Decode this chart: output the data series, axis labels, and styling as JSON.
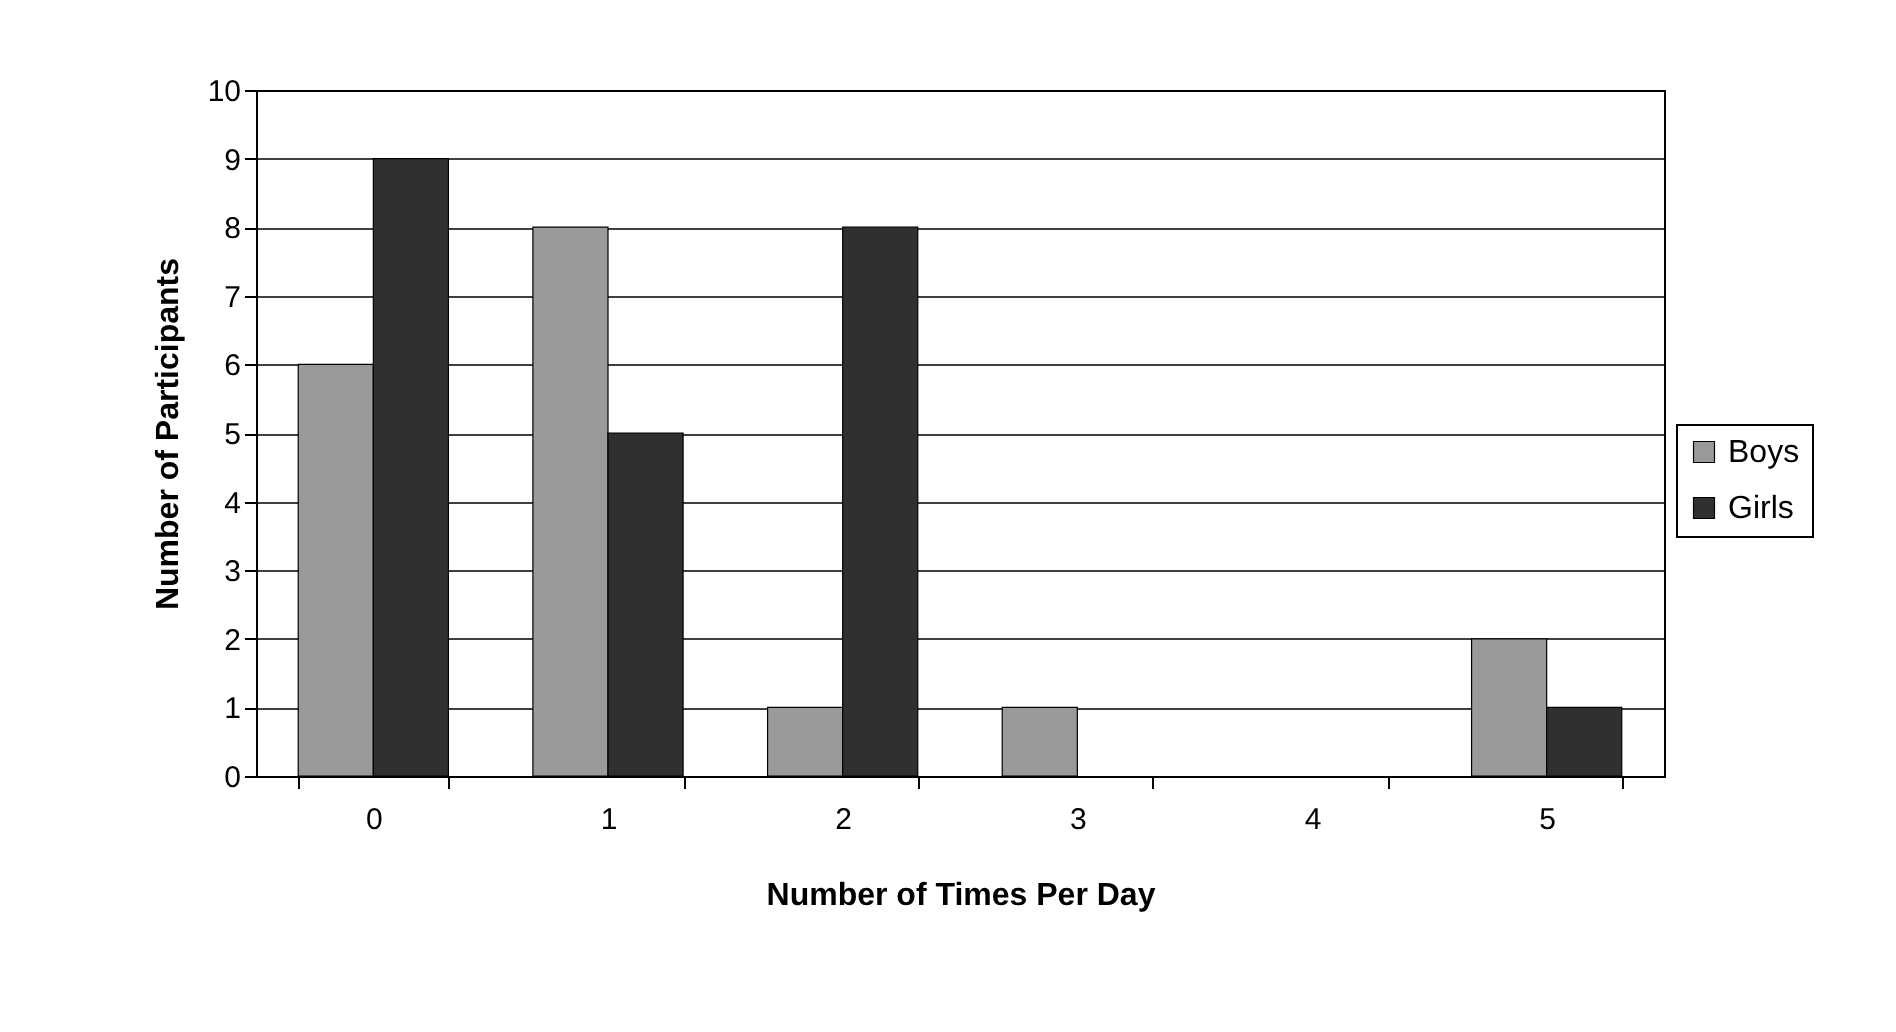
{
  "chart_data": {
    "type": "bar",
    "xlabel": "Number of Times Per Day",
    "ylabel": "Number of Participants",
    "categories": [
      "0",
      "1",
      "2",
      "3",
      "4",
      "5"
    ],
    "series": [
      {
        "name": "Boys",
        "color": "#9a9a9a",
        "values": [
          6,
          8,
          1,
          1,
          0,
          2
        ]
      },
      {
        "name": "Girls",
        "color": "#303030",
        "values": [
          9,
          5,
          8,
          0,
          0,
          1
        ]
      }
    ],
    "ylim": [
      0,
      10
    ],
    "yticks": [
      0,
      1,
      2,
      3,
      4,
      5,
      6,
      7,
      8,
      9,
      10
    ],
    "grid": "y",
    "legend": "right"
  }
}
